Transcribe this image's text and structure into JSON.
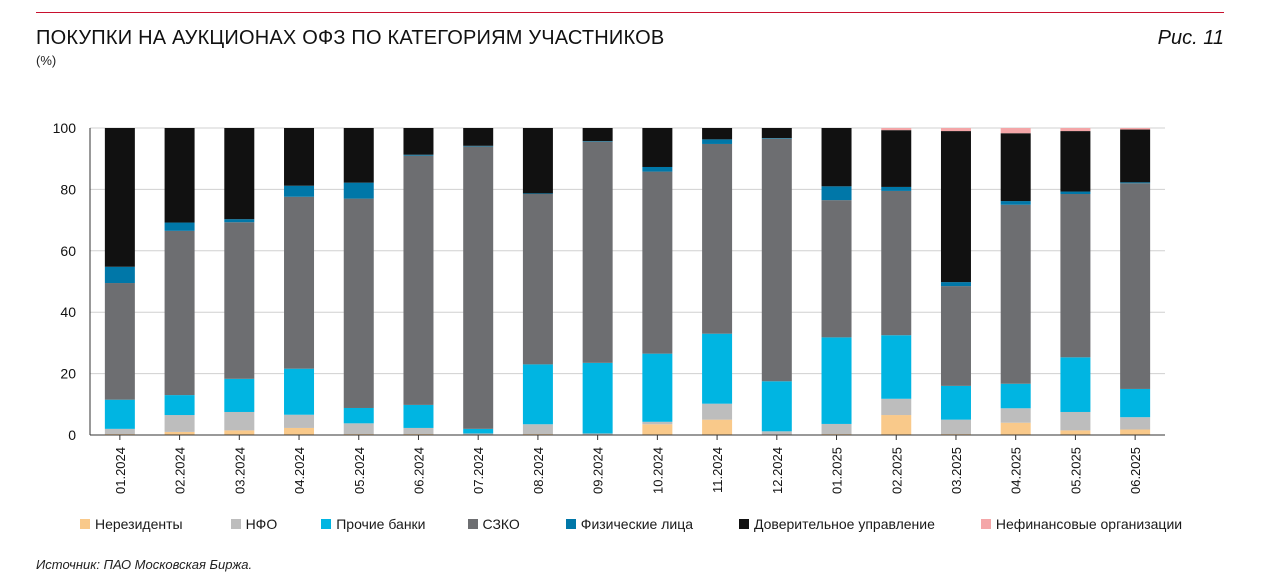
{
  "header": {
    "title": "ПОКУПКИ НА АУКЦИОНАХ ОФЗ ПО КАТЕГОРИЯМ УЧАСТНИКОВ",
    "unit": "(%)",
    "figure_label": "Рис. 11"
  },
  "source": "Источник: ПАО Московская Биржа.",
  "chart_data": {
    "type": "bar",
    "stacked": true,
    "title": "ПОКУПКИ НА АУКЦИОНАХ ОФЗ ПО КАТЕГОРИЯМ УЧАСТНИКОВ",
    "ylabel": "(%)",
    "ylim": [
      0,
      100
    ],
    "yticks": [
      0,
      20,
      40,
      60,
      80,
      100
    ],
    "grid": true,
    "legend_position": "bottom",
    "categories": [
      "01.2024",
      "02.2024",
      "03.2024",
      "04.2024",
      "05.2024",
      "06.2024",
      "07.2024",
      "08.2024",
      "09.2024",
      "10.2024",
      "11.2024",
      "12.2024",
      "01.2025",
      "02.2025",
      "03.2025",
      "04.2025",
      "05.2025",
      "06.2025"
    ],
    "series": [
      {
        "name": "Нерезиденты",
        "color": "#f9c98a",
        "values": [
          0.3,
          1.0,
          1.5,
          2.3,
          0.3,
          0.3,
          0.2,
          0.3,
          0.2,
          3.5,
          5.0,
          0.2,
          0.3,
          6.5,
          0.3,
          4.0,
          1.5,
          1.8
        ]
      },
      {
        "name": "НФО",
        "color": "#bdbdbd",
        "values": [
          1.7,
          5.5,
          6.0,
          4.3,
          3.5,
          2.0,
          0.3,
          3.2,
          0.3,
          0.8,
          5.2,
          1.0,
          3.3,
          5.3,
          4.7,
          4.7,
          6.0,
          4.0
        ]
      },
      {
        "name": "Прочие банки",
        "color": "#00b5e2",
        "values": [
          9.5,
          6.5,
          10.8,
          15.0,
          5.0,
          7.5,
          1.5,
          19.5,
          23.0,
          22.2,
          22.8,
          16.3,
          28.2,
          20.7,
          11.0,
          8.0,
          17.8,
          9.2
        ]
      },
      {
        "name": "СЗКО",
        "color": "#6d6e71",
        "values": [
          38.0,
          53.5,
          51.0,
          56.0,
          68.2,
          81.2,
          92.0,
          55.5,
          72.0,
          59.3,
          61.8,
          79.0,
          44.7,
          47.0,
          32.5,
          58.3,
          53.2,
          67.0
        ]
      },
      {
        "name": "Физические лица",
        "color": "#0077a8",
        "values": [
          5.3,
          2.7,
          1.0,
          3.6,
          5.2,
          0.3,
          0.2,
          0.2,
          0.2,
          1.5,
          1.5,
          0.2,
          4.5,
          1.3,
          1.3,
          1.2,
          0.8,
          0.3
        ]
      },
      {
        "name": "Доверительное управление",
        "color": "#111111",
        "values": [
          45.2,
          30.8,
          29.7,
          18.8,
          17.8,
          8.7,
          5.8,
          21.3,
          4.3,
          12.7,
          3.7,
          3.3,
          19.0,
          18.5,
          49.2,
          22.1,
          19.7,
          17.2
        ]
      },
      {
        "name": "Нефинансовые организации",
        "color": "#f4a6a8",
        "values": [
          0,
          0,
          0,
          0,
          0,
          0,
          0,
          0,
          0,
          0,
          0,
          0,
          0,
          0.7,
          1.0,
          1.7,
          1.0,
          0.5
        ]
      }
    ]
  }
}
